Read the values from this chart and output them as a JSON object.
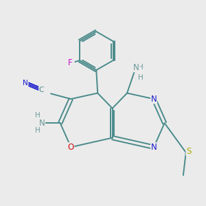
{
  "bg_color": "#ebebeb",
  "bond_color": "#4a8a8a",
  "atom_colors": {
    "N": "#1a1acc",
    "O": "#cc1111",
    "S": "#aaaa00",
    "F": "#cc11cc",
    "H": "#6a9a9a",
    "C": "#4a8a8a"
  },
  "font_size": 8.5,
  "figsize": [
    3.0,
    3.0
  ],
  "dpi": 100,
  "lw": 1.4
}
